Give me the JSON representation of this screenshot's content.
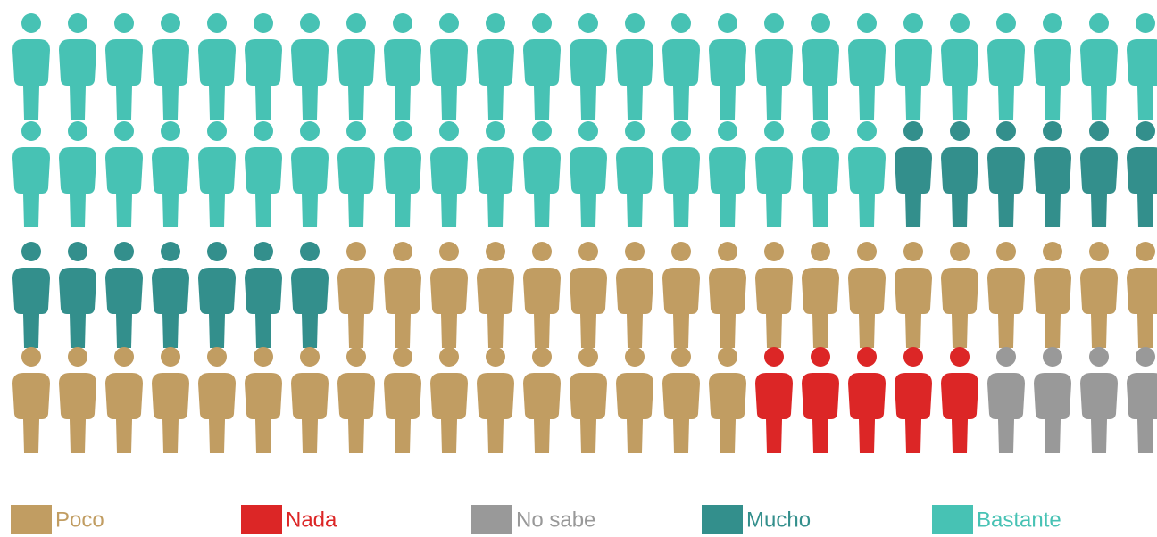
{
  "chart_data": {
    "type": "pictogram",
    "series": [
      {
        "name": "Poco",
        "color": "#c19d62",
        "values": [
          34
        ]
      },
      {
        "name": "Nada",
        "color": "#dc2626",
        "values": [
          5
        ]
      },
      {
        "name": "No sabe",
        "color": "#999999",
        "values": [
          4
        ]
      },
      {
        "name": "Mucho",
        "color": "#338f8c",
        "values": [
          13
        ]
      },
      {
        "name": "Bastante",
        "color": "#47c2b4",
        "values": [
          44
        ]
      }
    ]
  }
}
